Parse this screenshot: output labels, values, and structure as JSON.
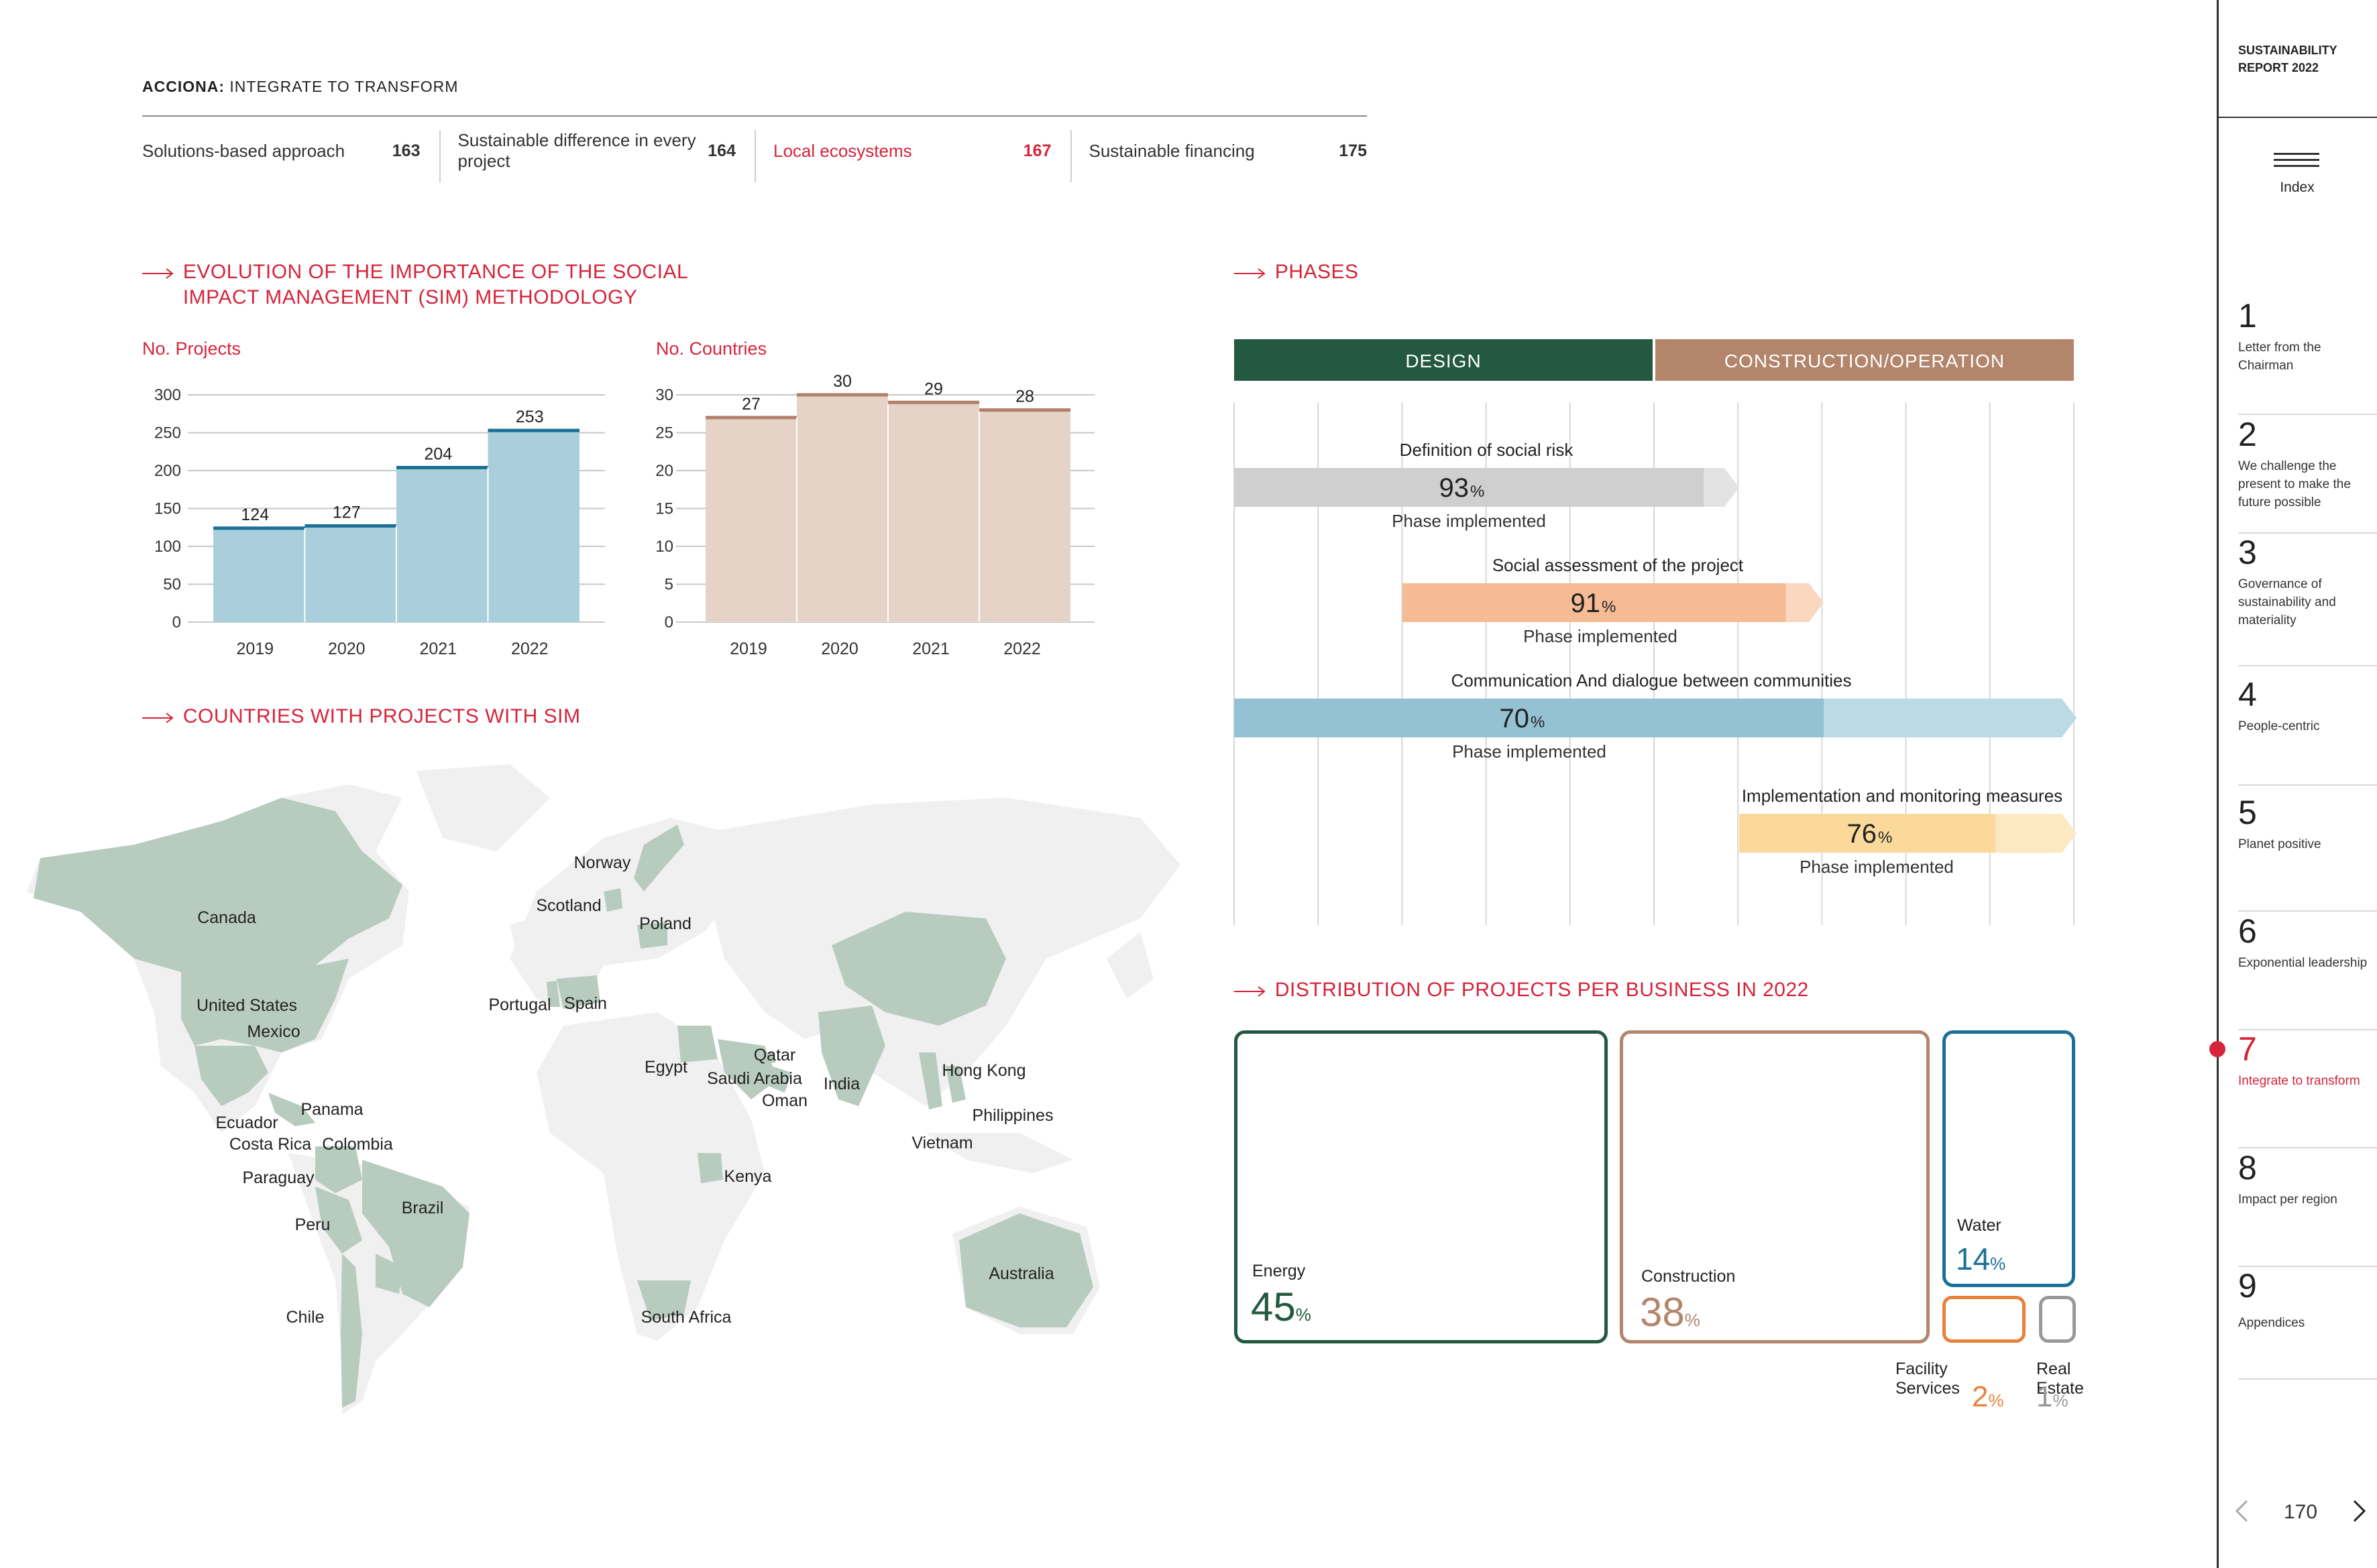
{
  "header": {
    "brand": "ACCIONA:",
    "title": "INTEGRATE TO TRANSFORM",
    "tabs": [
      {
        "label": "Solutions-based approach",
        "page": "163"
      },
      {
        "label": "Sustainable difference in every project",
        "page": "164"
      },
      {
        "label": "Local ecosystems",
        "page": "167",
        "active": true
      },
      {
        "label": "Sustainable financing",
        "page": "175"
      }
    ]
  },
  "sections": {
    "evolution_line1": "EVOLUTION OF THE IMPORTANCE OF THE SOCIAL",
    "evolution_line2": "IMPACT MANAGEMENT (SIM) METHODOLOGY",
    "countries": "COUNTRIES WITH PROJECTS WITH SIM",
    "phases": "PHASES",
    "distribution": "DISTRIBUTION OF PROJECTS PER BUSINESS IN 2022"
  },
  "chart_data": [
    {
      "type": "bar",
      "title": "No. Projects",
      "categories": [
        "2019",
        "2020",
        "2021",
        "2022"
      ],
      "values": [
        124,
        127,
        204,
        253
      ],
      "yticks": [
        0,
        50,
        100,
        150,
        200,
        250,
        300
      ],
      "ylim": [
        0,
        300
      ],
      "grid": true,
      "color": "#a9cfdd",
      "edge_color": "#1b6f96"
    },
    {
      "type": "bar",
      "title": "No. Countries",
      "categories": [
        "2019",
        "2020",
        "2021",
        "2022"
      ],
      "values": [
        27,
        30,
        29,
        28
      ],
      "yticks": [
        0,
        5,
        10,
        15,
        20,
        25,
        30
      ],
      "ylim": [
        0,
        30
      ],
      "grid": true,
      "color": "#e6d3c8",
      "edge_color": "#b1806a"
    }
  ],
  "map": {
    "labels": [
      "Canada",
      "United States",
      "Mexico",
      "Panama",
      "Ecuador",
      "Costa Rica",
      "Colombia",
      "Paraguay",
      "Brazil",
      "Peru",
      "Chile",
      "Norway",
      "Scotland",
      "Poland",
      "Portugal",
      "Spain",
      "Egypt",
      "Qatar",
      "Saudi Arabia",
      "Oman",
      "India",
      "Hong Kong",
      "Philippines",
      "Vietnam",
      "Kenya",
      "South Africa",
      "Australia"
    ],
    "highlight_color": "#b8cbbf",
    "base_color": "#f0f0f0"
  },
  "phases": {
    "headers": [
      {
        "label": "DESIGN",
        "color": "#235940"
      },
      {
        "label": "CONSTRUCTION/OPERATION",
        "color": "#b3856b"
      }
    ],
    "items": [
      {
        "title": "Definition of social risk",
        "value": 93,
        "unit": "%",
        "caption": "Phase implemented",
        "color": "#cfcfcf",
        "light": "#e3e3e3"
      },
      {
        "title": "Social assessment of the project",
        "value": 91,
        "unit": "%",
        "caption": "Phase implemented",
        "color": "#f5bb94",
        "light": "#fad8c0"
      },
      {
        "title": "Communication And dialogue between communities",
        "value": 70,
        "unit": "%",
        "caption": "Phase implemented",
        "color": "#95c2d3",
        "light": "#bcdae5"
      },
      {
        "title": "Implementation and monitoring measures",
        "value": 76,
        "unit": "%",
        "caption": "Phase implemented",
        "color": "#fad99a",
        "light": "#fce8c1"
      }
    ]
  },
  "distribution": [
    {
      "label": "Energy",
      "value": "45",
      "unit": "%",
      "color": "#235940"
    },
    {
      "label": "Construction",
      "value": "38",
      "unit": "%",
      "color": "#b3856b"
    },
    {
      "label": "Water",
      "value": "14",
      "unit": "%",
      "color": "#1b6f96"
    },
    {
      "label": "Facility Services",
      "value": "2",
      "unit": "%",
      "color": "#e8823a"
    },
    {
      "label": "Real Estate",
      "value": "1",
      "unit": "%",
      "color": "#999999"
    }
  ],
  "sidebar": {
    "title_line1": "SUSTAINABILITY",
    "title_line2": "REPORT 2022",
    "index_label": "Index",
    "chapters": [
      {
        "num": "1",
        "title": "Letter from the Chairman"
      },
      {
        "num": "2",
        "title": "We challenge the present to make the future possible"
      },
      {
        "num": "3",
        "title": "Governance of sustainability and materiality"
      },
      {
        "num": "4",
        "title": "People-centric"
      },
      {
        "num": "5",
        "title": "Planet positive"
      },
      {
        "num": "6",
        "title": "Exponential leadership"
      },
      {
        "num": "7",
        "title": "Integrate to transform",
        "active": true
      },
      {
        "num": "8",
        "title": "Impact per region"
      },
      {
        "num": "9",
        "title": "Appendices"
      }
    ],
    "page_number": "170",
    "prev_icon": "chevron-left-icon",
    "next_icon": "chevron-right-icon"
  }
}
